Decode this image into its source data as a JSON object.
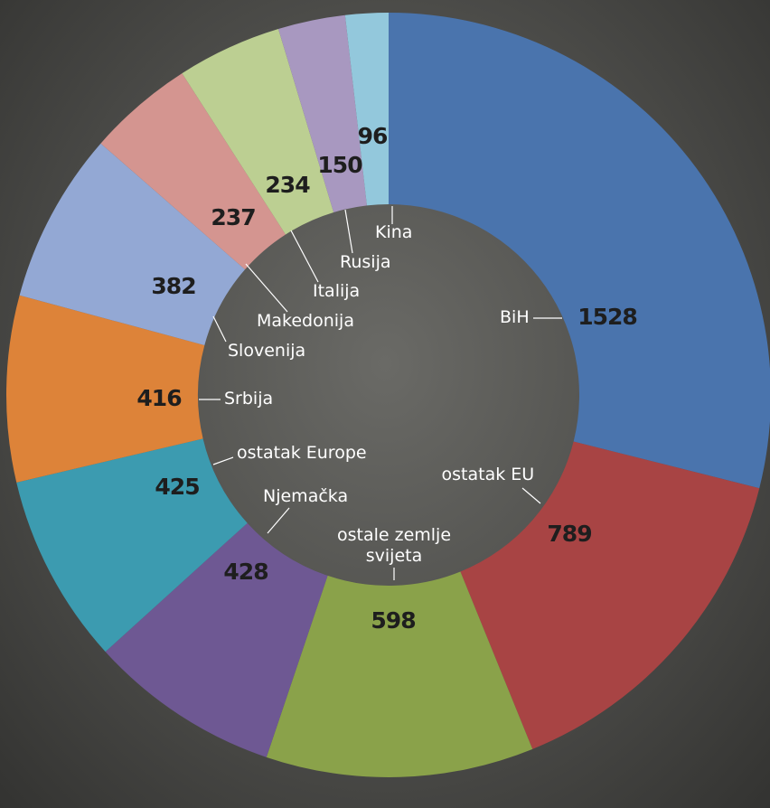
{
  "chart_data": {
    "type": "donut",
    "categories": [
      "BiH",
      "ostatak EU",
      "ostale zemlje svijeta",
      "Njemačka",
      "ostatak Europe",
      "Srbija",
      "Slovenija",
      "Makedonija",
      "Italija",
      "Rusija",
      "Kina"
    ],
    "values": [
      1528,
      789,
      598,
      428,
      425,
      416,
      382,
      237,
      234,
      150,
      96
    ],
    "colors": [
      "#4a74ad",
      "#a84444",
      "#8aa24a",
      "#6e5893",
      "#3c9bb0",
      "#dd8339",
      "#93a8d4",
      "#d49590",
      "#bccf92",
      "#a898c0",
      "#93c8dc"
    ]
  }
}
